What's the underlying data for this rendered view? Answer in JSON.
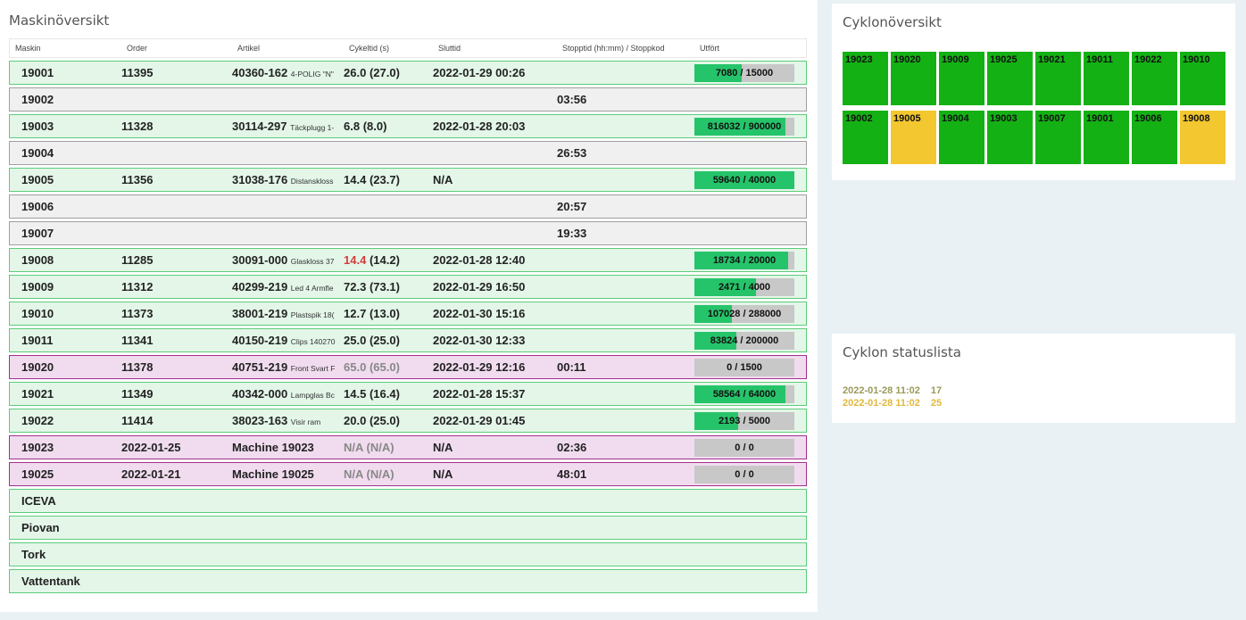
{
  "colors": {
    "green_row": "#e3f6e8",
    "gray_row": "#f0f0f0",
    "pink_row": "#f1dcef",
    "progress": "#26c46a",
    "tile_ok": "#14b114",
    "tile_warn": "#f2c72f",
    "status_text": "#e0b83a"
  },
  "machine_overview": {
    "title": "Maskinöversikt",
    "columns": [
      "Maskin",
      "Order",
      "Artikel",
      "Cykeltid (s)",
      "Sluttid",
      "Stopptid (hh:mm) / Stoppkod",
      "Utfört"
    ],
    "rows": [
      {
        "maskin": "19001",
        "order": "11395",
        "artikel": "40360-162",
        "artikel_desc": "4-POLIG \"N\"",
        "cykeltid": "26.0",
        "cykeltid_ref": "(27.0)",
        "sluttid": "2022-01-29 00:26",
        "stopptid": "",
        "utfort": "7080 / 15000",
        "progress": 0.472,
        "status": "green",
        "cykel_style": ""
      },
      {
        "maskin": "19002",
        "order": "",
        "artikel": "",
        "artikel_desc": "",
        "cykeltid": "",
        "cykeltid_ref": "",
        "sluttid": "",
        "stopptid": "03:56",
        "utfort": "",
        "progress": null,
        "status": "gray",
        "cykel_style": ""
      },
      {
        "maskin": "19003",
        "order": "11328",
        "artikel": "30114-297",
        "artikel_desc": "Täckplugg 1-",
        "cykeltid": "6.8",
        "cykeltid_ref": "(8.0)",
        "sluttid": "2022-01-28 20:03",
        "stopptid": "",
        "utfort": "816032 / 900000",
        "progress": 0.907,
        "status": "green",
        "cykel_style": ""
      },
      {
        "maskin": "19004",
        "order": "",
        "artikel": "",
        "artikel_desc": "",
        "cykeltid": "",
        "cykeltid_ref": "",
        "sluttid": "",
        "stopptid": "26:53",
        "utfort": "",
        "progress": null,
        "status": "gray",
        "cykel_style": ""
      },
      {
        "maskin": "19005",
        "order": "11356",
        "artikel": "31038-176",
        "artikel_desc": "Distanskloss",
        "cykeltid": "14.4",
        "cykeltid_ref": "(23.7)",
        "sluttid": "N/A",
        "stopptid": "",
        "utfort": "59640 / 40000",
        "progress": 1.0,
        "status": "green",
        "cykel_style": ""
      },
      {
        "maskin": "19006",
        "order": "",
        "artikel": "",
        "artikel_desc": "",
        "cykeltid": "",
        "cykeltid_ref": "",
        "sluttid": "",
        "stopptid": "20:57",
        "utfort": "",
        "progress": null,
        "status": "gray",
        "cykel_style": ""
      },
      {
        "maskin": "19007",
        "order": "",
        "artikel": "",
        "artikel_desc": "",
        "cykeltid": "",
        "cykeltid_ref": "",
        "sluttid": "",
        "stopptid": "19:33",
        "utfort": "",
        "progress": null,
        "status": "gray",
        "cykel_style": ""
      },
      {
        "maskin": "19008",
        "order": "11285",
        "artikel": "30091-000",
        "artikel_desc": "Glaskloss 37",
        "cykeltid": "14.4",
        "cykeltid_ref": "(14.2)",
        "sluttid": "2022-01-28 12:40",
        "stopptid": "",
        "utfort": "18734 / 20000",
        "progress": 0.937,
        "status": "green",
        "cykel_style": "red"
      },
      {
        "maskin": "19009",
        "order": "11312",
        "artikel": "40299-219",
        "artikel_desc": "Led 4 Armfle",
        "cykeltid": "72.3",
        "cykeltid_ref": "(73.1)",
        "sluttid": "2022-01-29 16:50",
        "stopptid": "",
        "utfort": "2471 / 4000",
        "progress": 0.618,
        "status": "green",
        "cykel_style": ""
      },
      {
        "maskin": "19010",
        "order": "11373",
        "artikel": "38001-219",
        "artikel_desc": "Plastspik 18(",
        "cykeltid": "12.7",
        "cykeltid_ref": "(13.0)",
        "sluttid": "2022-01-30 15:16",
        "stopptid": "",
        "utfort": "107028 / 288000",
        "progress": 0.372,
        "status": "green",
        "cykel_style": ""
      },
      {
        "maskin": "19011",
        "order": "11341",
        "artikel": "40150-219",
        "artikel_desc": "Clips 140270",
        "cykeltid": "25.0",
        "cykeltid_ref": "(25.0)",
        "sluttid": "2022-01-30 12:33",
        "stopptid": "",
        "utfort": "83824 / 200000",
        "progress": 0.419,
        "status": "green",
        "cykel_style": ""
      },
      {
        "maskin": "19020",
        "order": "11378",
        "artikel": "40751-219",
        "artikel_desc": "Front Svart F",
        "cykeltid": "65.0",
        "cykeltid_ref": "(65.0)",
        "sluttid": "2022-01-29 12:16",
        "stopptid": "00:11",
        "utfort": "0 / 1500",
        "progress": 0,
        "status": "pink",
        "cykel_style": "dim"
      },
      {
        "maskin": "19021",
        "order": "11349",
        "artikel": "40342-000",
        "artikel_desc": "Lampglas Bc",
        "cykeltid": "14.5",
        "cykeltid_ref": "(16.4)",
        "sluttid": "2022-01-28 15:37",
        "stopptid": "",
        "utfort": "58564 / 64000",
        "progress": 0.915,
        "status": "green",
        "cykel_style": ""
      },
      {
        "maskin": "19022",
        "order": "11414",
        "artikel": "38023-163",
        "artikel_desc": "Visir ram",
        "cykeltid": "20.0",
        "cykeltid_ref": "(25.0)",
        "sluttid": "2022-01-29 01:45",
        "stopptid": "",
        "utfort": "2193 / 5000",
        "progress": 0.439,
        "status": "green",
        "cykel_style": ""
      },
      {
        "maskin": "19023",
        "order": "2022-01-25",
        "artikel": "Machine 19023",
        "artikel_desc": "",
        "cykeltid": "N/A",
        "cykeltid_ref": "(N/A)",
        "sluttid": "N/A",
        "stopptid": "02:36",
        "utfort": "0 / 0",
        "progress": 0,
        "status": "pink",
        "cykel_style": "dim"
      },
      {
        "maskin": "19025",
        "order": "2022-01-21",
        "artikel": "Machine 19025",
        "artikel_desc": "",
        "cykeltid": "N/A",
        "cykeltid_ref": "(N/A)",
        "sluttid": "N/A",
        "stopptid": "48:01",
        "utfort": "0 / 0",
        "progress": 0,
        "status": "pink",
        "cykel_style": "dim"
      },
      {
        "maskin": "ICEVA",
        "order": "",
        "artikel": "",
        "artikel_desc": "",
        "cykeltid": "",
        "cykeltid_ref": "",
        "sluttid": "",
        "stopptid": "",
        "utfort": "",
        "progress": null,
        "status": "green",
        "cykel_style": ""
      },
      {
        "maskin": "Piovan",
        "order": "",
        "artikel": "",
        "artikel_desc": "",
        "cykeltid": "",
        "cykeltid_ref": "",
        "sluttid": "",
        "stopptid": "",
        "utfort": "",
        "progress": null,
        "status": "green",
        "cykel_style": ""
      },
      {
        "maskin": "Tork",
        "order": "",
        "artikel": "",
        "artikel_desc": "",
        "cykeltid": "",
        "cykeltid_ref": "",
        "sluttid": "",
        "stopptid": "",
        "utfort": "",
        "progress": null,
        "status": "green",
        "cykel_style": ""
      },
      {
        "maskin": "Vattentank",
        "order": "",
        "artikel": "",
        "artikel_desc": "",
        "cykeltid": "",
        "cykeltid_ref": "",
        "sluttid": "",
        "stopptid": "",
        "utfort": "",
        "progress": null,
        "status": "green",
        "cykel_style": ""
      }
    ]
  },
  "cyclone_overview": {
    "title": "Cyklonöversikt",
    "row1": [
      {
        "id": "19023",
        "state": "ok"
      },
      {
        "id": "19020",
        "state": "ok"
      },
      {
        "id": "19009",
        "state": "ok"
      },
      {
        "id": "19025",
        "state": "ok"
      },
      {
        "id": "19021",
        "state": "ok"
      },
      {
        "id": "19011",
        "state": "ok"
      },
      {
        "id": "19022",
        "state": "ok"
      },
      {
        "id": "19010",
        "state": "ok"
      }
    ],
    "row2": [
      {
        "id": "19002",
        "state": "ok"
      },
      {
        "id": "19005",
        "state": "warn"
      },
      {
        "id": "19004",
        "state": "ok"
      },
      {
        "id": "19003",
        "state": "ok"
      },
      {
        "id": "19007",
        "state": "ok"
      },
      {
        "id": "19001",
        "state": "ok"
      },
      {
        "id": "19006",
        "state": "ok"
      },
      {
        "id": "19008",
        "state": "warn"
      }
    ]
  },
  "cyclone_status": {
    "title": "Cyklon statuslista",
    "entries": [
      {
        "time": "2022-01-28 11:02",
        "value": "17"
      },
      {
        "time": "2022-01-28 11:02",
        "value": "25"
      }
    ]
  }
}
